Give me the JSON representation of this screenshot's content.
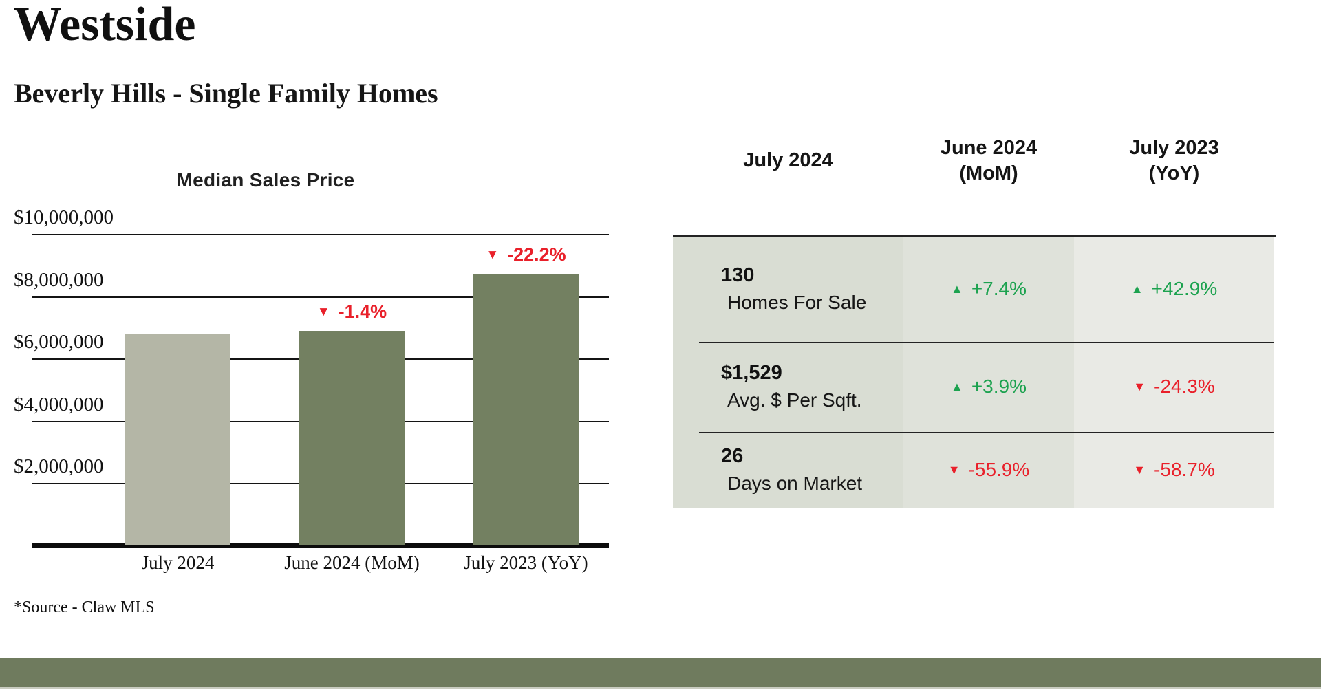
{
  "page": {
    "title": "Westside",
    "subtitle": "Beverly Hills - Single Family Homes",
    "source_note": "*Source - Claw MLS"
  },
  "colors": {
    "bar_light": "#b4b6a6",
    "bar_dark": "#738061",
    "positive": "#1ca24f",
    "negative": "#e9202a",
    "footer_bar": "#6f7b5e",
    "table_columns": [
      "#d9ddd3",
      "#dfe2da",
      "#e9eae5"
    ]
  },
  "chart_data": {
    "type": "bar",
    "title": "Median Sales Price",
    "categories": [
      "July 2024",
      "June 2024 (MoM)",
      "July 2023 (YoY)"
    ],
    "values": [
      6780000,
      6880000,
      8720000
    ],
    "ylim": [
      0,
      10000000
    ],
    "gridlines": [
      2000000,
      4000000,
      6000000,
      8000000,
      10000000
    ],
    "tick_labels": [
      "$2,000,000",
      "$4,000,000",
      "$6,000,000",
      "$8,000,000",
      "$10,000,000"
    ],
    "bar_colors": [
      "#b4b6a6",
      "#738061",
      "#738061"
    ],
    "grid": true,
    "legend": "none",
    "annotations": [
      {
        "bar_index": 1,
        "text": "-1.4%",
        "direction": "down",
        "glyph": "▼"
      },
      {
        "bar_index": 2,
        "text": "-22.2%",
        "direction": "down",
        "glyph": "▼"
      }
    ]
  },
  "table": {
    "headers": [
      {
        "line1": "July 2024",
        "line2": ""
      },
      {
        "line1": "June 2024",
        "line2": "(MoM)"
      },
      {
        "line1": "July 2023",
        "line2": "(YoY)"
      }
    ],
    "rows": [
      {
        "value": "130",
        "label": "Homes For Sale",
        "mom": {
          "text": "+7.4%",
          "trend": "up",
          "glyph": "▲"
        },
        "yoy": {
          "text": "+42.9%",
          "trend": "up",
          "glyph": "▲"
        }
      },
      {
        "value": "$1,529",
        "label": "Avg. $ Per Sqft.",
        "mom": {
          "text": "+3.9%",
          "trend": "up",
          "glyph": "▲"
        },
        "yoy": {
          "text": "-24.3%",
          "trend": "down",
          "glyph": "▼"
        }
      },
      {
        "value": "26",
        "label": "Days on Market",
        "mom": {
          "text": "-55.9%",
          "trend": "down",
          "glyph": "▼"
        },
        "yoy": {
          "text": "-58.7%",
          "trend": "down",
          "glyph": "▼"
        }
      }
    ]
  }
}
